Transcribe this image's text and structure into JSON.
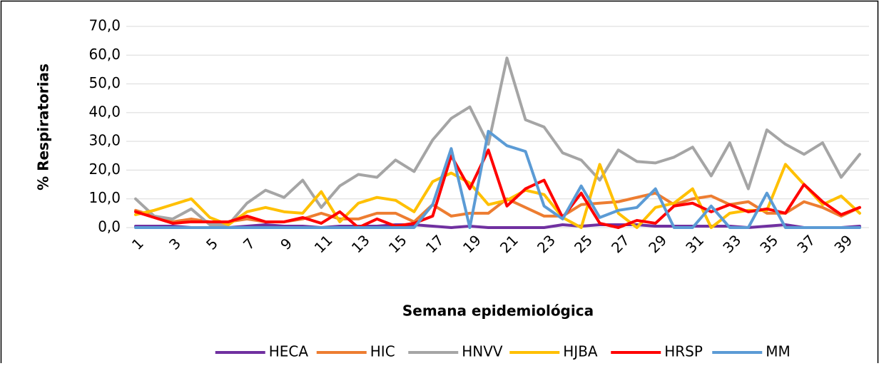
{
  "chart_data": {
    "type": "line",
    "y_label": "% Respiratorias",
    "x_label": "Semana epidemiológica",
    "categories": [
      "1",
      null,
      "3",
      null,
      "5",
      null,
      "7",
      null,
      "9",
      null,
      "11",
      null,
      "13",
      null,
      "15",
      null,
      "17",
      null,
      "19",
      null,
      "21",
      null,
      "23",
      null,
      "25",
      null,
      "27",
      null,
      "29",
      null,
      "31",
      null,
      "33",
      null,
      "35",
      null,
      "37",
      null,
      "39",
      null
    ],
    "ylim": [
      0,
      70
    ],
    "yticks": [
      {
        "value": 0,
        "label": "0,0"
      },
      {
        "value": 10,
        "label": "10,0"
      },
      {
        "value": 20,
        "label": "20,0"
      },
      {
        "value": 30,
        "label": "30,0"
      },
      {
        "value": 40,
        "label": "40,0"
      },
      {
        "value": 50,
        "label": "50,0"
      },
      {
        "value": 60,
        "label": "60,0"
      },
      {
        "value": 70,
        "label": "70,0"
      }
    ],
    "grid": true,
    "series": [
      {
        "name": "HECA",
        "color": "#7030a0",
        "values": [
          0.5,
          0.5,
          0.5,
          0,
          0,
          0,
          0.5,
          1,
          0.5,
          0.5,
          0,
          0.5,
          0.5,
          0.5,
          1,
          1,
          0.5,
          0,
          0.5,
          0,
          0,
          0,
          0,
          1,
          0.5,
          1,
          1,
          1,
          0.5,
          0.5,
          0.5,
          0.5,
          0.5,
          0,
          0.5,
          1,
          0,
          0,
          0,
          0.5
        ]
      },
      {
        "name": "HIC",
        "color": "#ed7d31",
        "values": [
          6,
          4,
          2,
          3,
          2,
          2,
          3,
          2,
          2,
          3,
          5,
          3,
          3,
          5,
          5,
          2,
          8,
          4,
          5,
          5,
          10,
          7,
          4,
          4,
          8,
          8.5,
          9,
          10.5,
          12,
          8,
          10,
          11,
          8,
          9,
          5,
          5,
          9,
          7,
          4,
          7
        ]
      },
      {
        "name": "HNVV",
        "color": "#a5a5a5",
        "values": [
          10,
          4,
          3,
          6.5,
          1,
          1,
          8.5,
          13,
          10.5,
          16.5,
          7,
          14.5,
          18.5,
          17.5,
          23.5,
          19.5,
          30.5,
          38,
          42,
          29,
          59,
          37.5,
          35,
          26,
          23.5,
          16.5,
          27,
          23,
          22.5,
          24.5,
          28,
          18,
          29.5,
          13.5,
          34,
          29,
          25.5,
          29.5,
          17.5,
          25.5
        ]
      },
      {
        "name": "HJBA",
        "color": "#ffc000",
        "values": [
          4.5,
          6,
          8,
          10,
          3.5,
          1,
          5.5,
          7,
          5.5,
          5,
          12.5,
          2,
          8.5,
          10.5,
          9.5,
          5.5,
          16,
          19,
          15.5,
          8,
          9.5,
          13,
          11.5,
          3.5,
          0,
          22,
          5,
          0,
          7,
          8.5,
          13.5,
          0,
          5,
          6,
          6,
          22,
          15,
          8,
          11,
          5
        ]
      },
      {
        "name": "HRSP",
        "color": "#ff0000",
        "values": [
          5.5,
          3.5,
          1.5,
          2,
          2,
          2,
          4,
          2,
          2,
          3.5,
          1.5,
          5.5,
          0,
          3,
          0.5,
          1.5,
          4,
          25,
          13.5,
          27,
          7.5,
          13.5,
          16.5,
          3.5,
          12,
          1.5,
          0,
          2.5,
          1.5,
          7.5,
          8.5,
          5.5,
          8,
          5.5,
          6.5,
          5,
          15,
          9,
          4.5,
          7
        ]
      },
      {
        "name": "MM",
        "color": "#5b9bd5",
        "values": [
          0,
          0,
          0,
          0,
          0,
          0,
          0,
          0,
          0,
          0,
          0,
          0,
          0,
          0,
          0,
          0,
          8,
          27.5,
          0,
          33.5,
          28.5,
          26.5,
          7.5,
          3,
          14.5,
          3.5,
          6,
          7,
          13.5,
          0,
          0,
          7.5,
          0,
          0,
          12,
          0,
          0,
          0,
          0,
          0
        ]
      }
    ]
  }
}
